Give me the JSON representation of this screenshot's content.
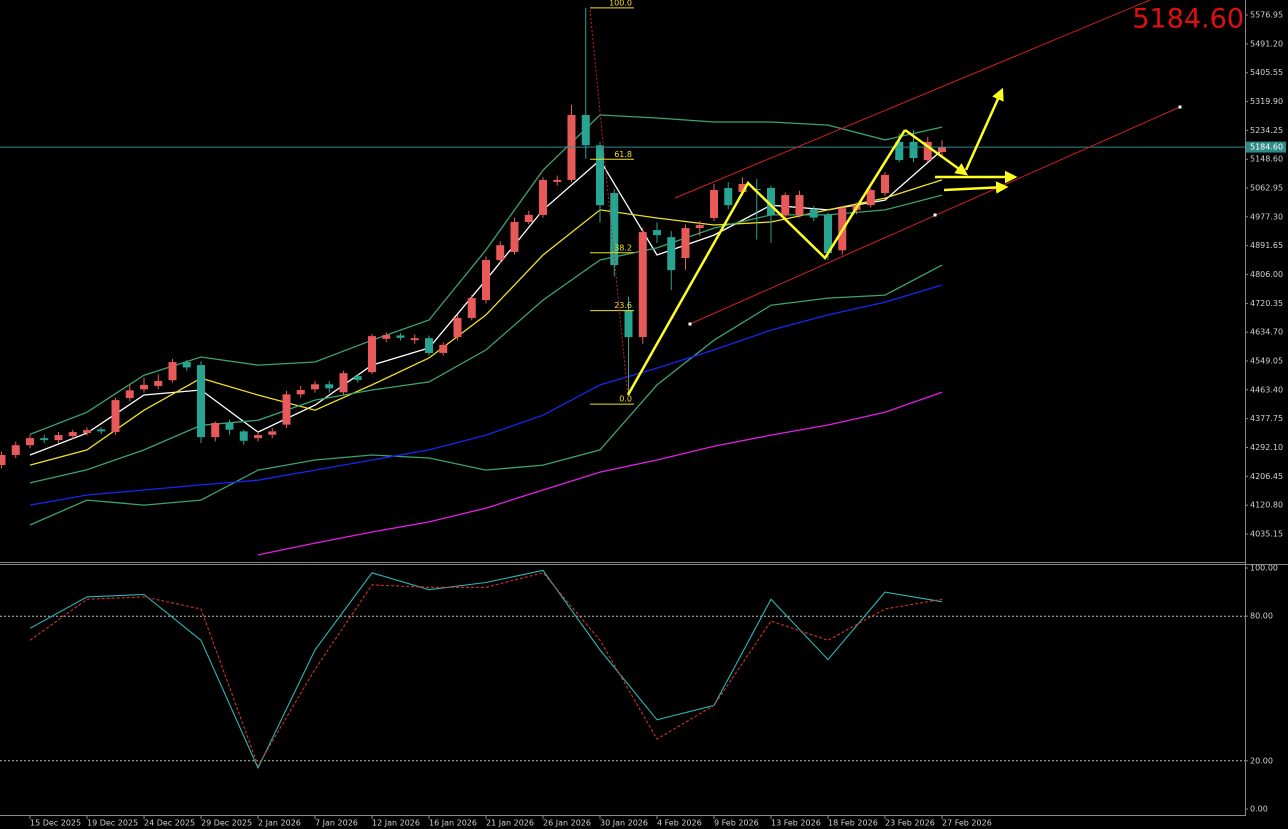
{
  "chart_data": [
    {
      "type": "candlestick",
      "categories": [
        null,
        null,
        "15 Dec 2025",
        null,
        null,
        null,
        "19 Dec 2025",
        null,
        null,
        null,
        "24 Dec 2025",
        null,
        null,
        null,
        "29 Dec 2025",
        null,
        null,
        null,
        "2 Jan 2026",
        null,
        null,
        null,
        "7 Jan 2026",
        null,
        null,
        null,
        "12 Jan 2026",
        null,
        null,
        null,
        "16 Jan 2026",
        null,
        null,
        null,
        "21 Jan 2026",
        null,
        null,
        null,
        "26 Jan 2026",
        null,
        null,
        null,
        "30 Jan 2026",
        null,
        null,
        null,
        "4 Feb 2026",
        null,
        null,
        null,
        "9 Feb 2026",
        null,
        null,
        null,
        "13 Feb 2026",
        null,
        null,
        null,
        "18 Feb 2026",
        null,
        null,
        null,
        "23 Feb 2026",
        null,
        null,
        null,
        "27 Feb 2026"
      ],
      "open": [
        4240,
        4270,
        4299,
        4320,
        4314,
        4326,
        4335,
        4346,
        4338,
        4439,
        4465,
        4475,
        4492,
        4546,
        4537,
        4323,
        4365,
        4340,
        4320,
        4330,
        4360,
        4450,
        4465,
        4480,
        4456,
        4504,
        4516,
        4615,
        4625,
        4611,
        4617,
        4573,
        4620,
        4677,
        4730,
        4849,
        4873,
        4962,
        4983,
        5081,
        5087,
        5280,
        5190,
        5048,
        4700,
        4620,
        4938,
        4917,
        4855,
        4944,
        4974,
        5063,
        5051,
        5060,
        5063,
        4983,
        4983,
        5000,
        4983,
        4878,
        4998,
        5012,
        5048,
        5200,
        5200,
        5146,
        5170
      ],
      "high": [
        4280,
        4310,
        4330,
        4330,
        4338,
        4345,
        4352,
        4352,
        4440,
        4480,
        4500,
        4510,
        4555,
        4552,
        4548,
        4370,
        4375,
        4345,
        4340,
        4350,
        4460,
        4475,
        4490,
        4490,
        4520,
        4510,
        4630,
        4635,
        4632,
        4628,
        4625,
        4605,
        4685,
        4745,
        4860,
        4905,
        4975,
        4995,
        5095,
        5100,
        5310,
        5598,
        5200,
        5060,
        4740,
        4945,
        4960,
        4935,
        4955,
        4965,
        5075,
        5080,
        5095,
        5090,
        5070,
        5050,
        5055,
        5010,
        4990,
        5010,
        5020,
        5062,
        5110,
        5225,
        5235,
        5215,
        5205
      ],
      "low": [
        4230,
        4260,
        4290,
        4305,
        4305,
        4318,
        4328,
        4332,
        4330,
        4430,
        4455,
        4465,
        4485,
        4520,
        4305,
        4310,
        4330,
        4300,
        4310,
        4320,
        4350,
        4440,
        4455,
        4455,
        4450,
        4485,
        4510,
        4605,
        4610,
        4600,
        4565,
        4565,
        4610,
        4670,
        4720,
        4840,
        4865,
        4955,
        4975,
        5070,
        5080,
        5150,
        4960,
        4800,
        4448,
        4600,
        4900,
        4760,
        4820,
        4920,
        4965,
        5000,
        5040,
        4910,
        4900,
        4970,
        4975,
        4965,
        4850,
        4865,
        4985,
        5005,
        5040,
        5140,
        5140,
        5140,
        5160
      ],
      "close": [
        4270,
        4299,
        4320,
        4314,
        4329,
        4338,
        4344,
        4340,
        4433,
        4462,
        4478,
        4490,
        4546,
        4530,
        4323,
        4365,
        4345,
        4312,
        4329,
        4340,
        4450,
        4463,
        4480,
        4468,
        4513,
        4493,
        4623,
        4626,
        4618,
        4617,
        4573,
        4597,
        4677,
        4736,
        4849,
        4893,
        4962,
        4983,
        5087,
        5087,
        5280,
        5190,
        5012,
        4834,
        4620,
        4932,
        4923,
        4819,
        4944,
        4953,
        5057,
        5012,
        5075,
        5057,
        4983,
        5042,
        5042,
        4975,
        4870,
        5003,
        5012,
        5057,
        5102,
        5146,
        5152,
        5200,
        5185
      ],
      "up_color": "#e85a5a",
      "down_color": "#27a592",
      "ylim": [
        3952,
        5621.5
      ],
      "yticks": [
        5576.95,
        {
          "value": 5491.2,
          "label": "5491.20"
        },
        5405.55,
        {
          "value": 5319.9,
          "label": "5319.90"
        },
        5234.25,
        {
          "value": 5148.6,
          "label": "5148.60"
        },
        5062.95,
        {
          "value": 4977.3,
          "label": "4977.30"
        },
        4891.65,
        {
          "value": 4806,
          "label": "4806.00"
        },
        4720.35,
        {
          "value": 4634.7,
          "label": "4634.70"
        },
        4549.05,
        {
          "value": 4463.4,
          "label": "4463.40"
        },
        4377.75,
        {
          "value": 4292.1,
          "label": "4292.10"
        },
        4206.45,
        {
          "value": 4120.8,
          "label": "4120.80"
        },
        4035.15
      ],
      "last_price": {
        "value": 5184.6,
        "label": "5184.60"
      },
      "last_price_color": "#2f8a8a",
      "overlays": [
        {
          "color": "#3aa370",
          "values": [
            4331,
            4397,
            4507,
            4561,
            4537,
            4546,
            4611,
            4671,
            4879,
            5116,
            5280,
            5271,
            5259,
            5259,
            5250,
            5206,
            5244
          ]
        },
        {
          "color": "#ffffff",
          "values": [
            4270,
            4335,
            4448,
            4463,
            4338,
            4418,
            4537,
            4588,
            4790,
            4998,
            5146,
            4864,
            4923,
            5012,
            4998,
            5027,
            5176
          ]
        },
        {
          "color": "#f0e020",
          "values": [
            4240,
            4285,
            4403,
            4498,
            4448,
            4403,
            4478,
            4558,
            4686,
            4864,
            4998,
            4974,
            4953,
            4962,
            4998,
            5033,
            5087
          ]
        },
        {
          "color": "#3aa370",
          "values": [
            4187,
            4226,
            4285,
            4358,
            4373,
            4433,
            4463,
            4487,
            4582,
            4730,
            4849,
            4885,
            4944,
            4983,
            4983,
            4998,
            5042
          ]
        },
        {
          "color": "#3aa370",
          "values": [
            4062,
            4136,
            4121,
            4136,
            4225,
            4255,
            4270,
            4261,
            4225,
            4240,
            4285,
            4478,
            4611,
            4715,
            4736,
            4745,
            4834
          ]
        },
        {
          "color": "#1428f0",
          "values": [
            4121,
            4151,
            4166,
            4181,
            4195,
            4225,
            4255,
            4285,
            4329,
            4388,
            4478,
            4528,
            4582,
            4641,
            4686,
            4724,
            4775
          ]
        },
        {
          "color": "#e020e0",
          "values": [
            null,
            null,
            null,
            null,
            3973,
            4008,
            4041,
            4071,
            4112,
            4166,
            4219,
            4255,
            4296,
            4329,
            4359,
            4397,
            4456
          ]
        }
      ],
      "fib": {
        "high": 5598,
        "low": 4421,
        "color": "#f0e020",
        "levels": [
          {
            "value": 100,
            "label": "100.0"
          },
          {
            "value": 61.8,
            "label": "61.8"
          },
          {
            "value": 38.2,
            "label": "38.2"
          },
          {
            "value": 23.6,
            "label": "23.6"
          },
          {
            "value": 0,
            "label": "0.0"
          }
        ]
      }
    },
    {
      "type": "line",
      "ylim": [
        0,
        100
      ],
      "yticks": [
        {
          "value": 100,
          "label": "100.00"
        },
        {
          "value": 80,
          "label": "80.00"
        },
        {
          "value": 20,
          "label": "20.00"
        },
        {
          "value": 0,
          "label": "0.00"
        }
      ],
      "series": [
        {
          "color": "#2ab7b7",
          "values": [
            75,
            88,
            89,
            70,
            17,
            66,
            98,
            91,
            94,
            99,
            66,
            37,
            43,
            87,
            62,
            90,
            86
          ]
        },
        {
          "color": "#d03030",
          "dashed": true,
          "values": [
            70,
            87,
            88,
            83,
            18,
            58,
            93,
            92,
            92,
            98,
            70,
            29,
            43,
            78,
            70,
            83,
            87
          ]
        }
      ]
    }
  ]
}
